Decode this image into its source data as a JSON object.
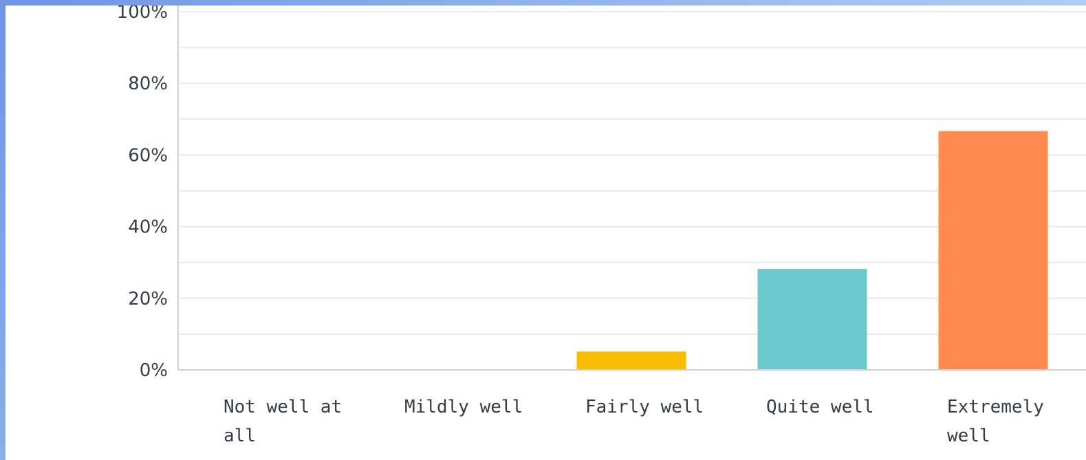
{
  "chart_data": {
    "type": "bar",
    "categories": [
      "Not well at all",
      "Mildly well",
      "Fairly well",
      "Quite well",
      "Extremely well"
    ],
    "category_label_lines": [
      [
        "Not well at",
        "all"
      ],
      [
        "Mildly well"
      ],
      [
        "Fairly well"
      ],
      [
        "Quite well"
      ],
      [
        "Extremely",
        "well"
      ]
    ],
    "values": [
      0,
      0,
      5.13,
      28.21,
      66.67
    ],
    "bar_colors": [
      "#00bf6f",
      "#507cb6",
      "#f9be00",
      "#6bc8cd",
      "#ff8b4f"
    ],
    "ylim": [
      0,
      100
    ],
    "y_ticks": [
      0,
      20,
      40,
      60,
      80,
      100
    ],
    "y_tick_labels": [
      "0%",
      "20%",
      "40%",
      "60%",
      "80%",
      "100%"
    ],
    "gridlines": true,
    "title": "",
    "xlabel": "",
    "ylabel": ""
  }
}
